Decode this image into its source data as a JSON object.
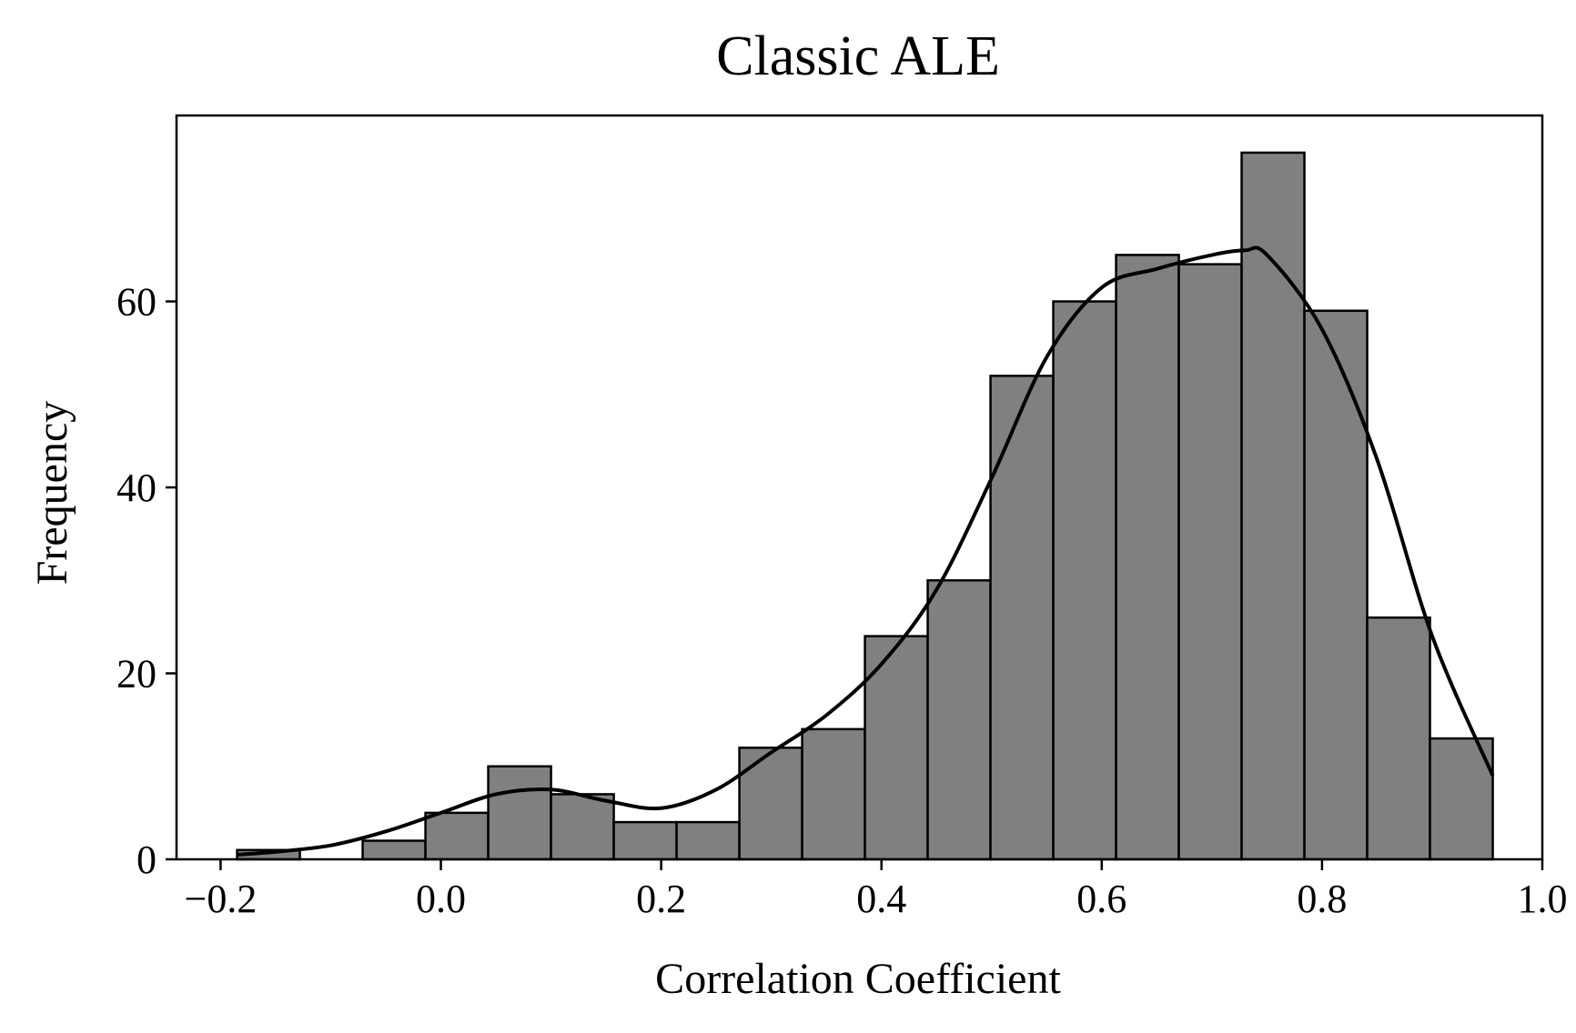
{
  "chart_data": {
    "type": "bar",
    "title": "Classic ALE",
    "xlabel": "Correlation Coefficient",
    "ylabel": "Frequency",
    "xlim": [
      -0.24,
      1.0
    ],
    "ylim": [
      0,
      80
    ],
    "x_ticks": [
      -0.2,
      0.0,
      0.2,
      0.4,
      0.6,
      0.8,
      1.0
    ],
    "x_tick_labels": [
      "−0.2",
      "0.0",
      "0.2",
      "0.4",
      "0.6",
      "0.8",
      "1.0"
    ],
    "y_ticks": [
      0,
      20,
      40,
      60
    ],
    "y_tick_labels": [
      "0",
      "20",
      "40",
      "60"
    ],
    "bin_edges": [
      -0.185,
      -0.128,
      -0.071,
      -0.014,
      0.043,
      0.1,
      0.157,
      0.214,
      0.271,
      0.328,
      0.385,
      0.442,
      0.499,
      0.556,
      0.613,
      0.67,
      0.727,
      0.784,
      0.841,
      0.898,
      0.955
    ],
    "values": [
      1,
      0,
      2,
      5,
      10,
      7,
      4,
      4,
      12,
      14,
      24,
      30,
      52,
      60,
      65,
      64,
      76,
      59,
      26,
      13
    ],
    "kde": {
      "x": [
        -0.185,
        -0.15,
        -0.1,
        -0.05,
        0.0,
        0.05,
        0.1,
        0.15,
        0.2,
        0.25,
        0.3,
        0.35,
        0.4,
        0.45,
        0.5,
        0.55,
        0.6,
        0.65,
        0.7,
        0.73,
        0.75,
        0.8,
        0.85,
        0.9,
        0.955
      ],
      "y": [
        0.5,
        0.8,
        1.5,
        3.0,
        5.0,
        7.0,
        7.5,
        6.3,
        5.5,
        7.5,
        11.5,
        15.5,
        21.0,
        29.0,
        41.0,
        54.0,
        61.5,
        63.5,
        65.0,
        65.5,
        65.0,
        57.0,
        43.0,
        24.0,
        9.0
      ]
    },
    "bar_color": "#808080",
    "edge_color": "#000000",
    "line_color": "#000000",
    "grid": false,
    "legend": "none"
  }
}
